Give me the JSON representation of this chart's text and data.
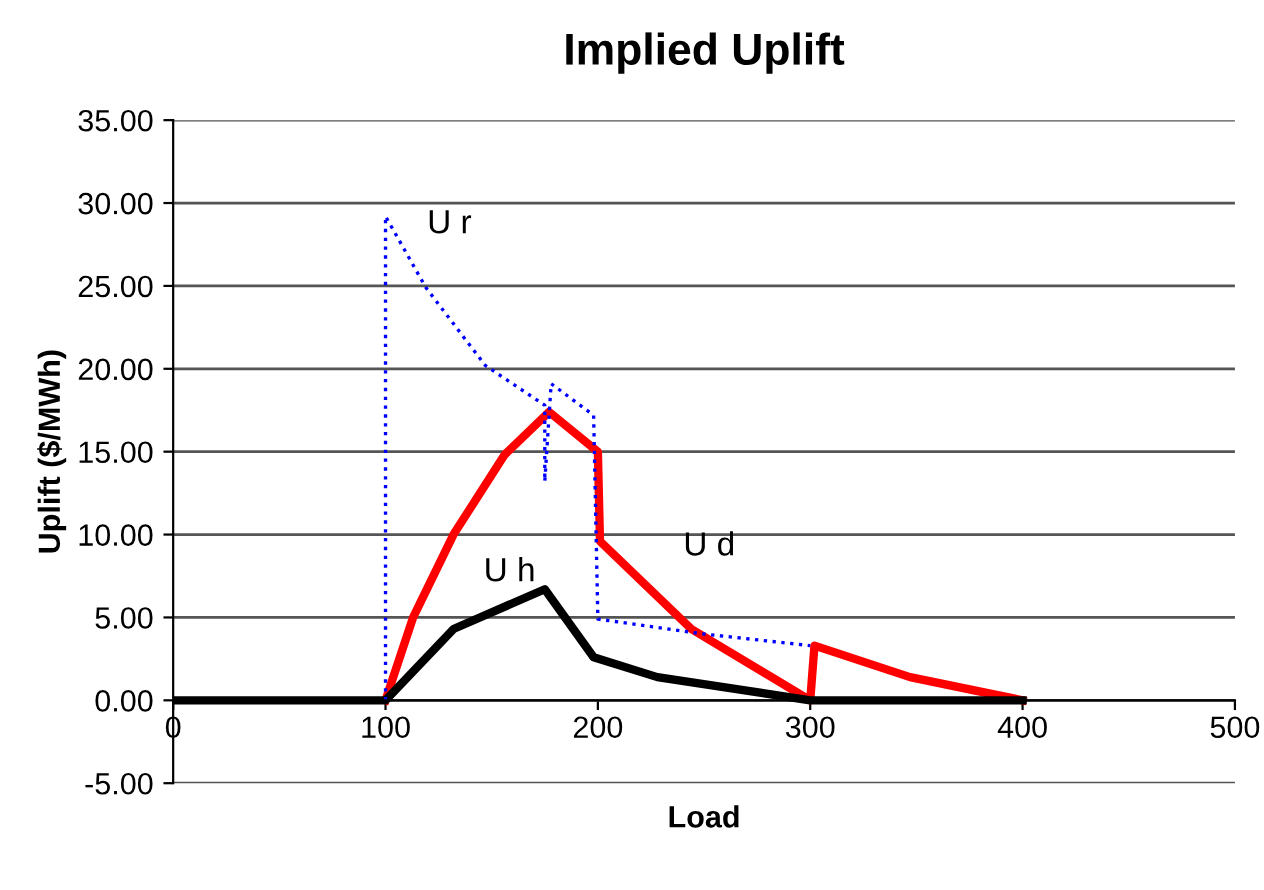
{
  "chart_data": {
    "type": "line",
    "title": "Implied Uplift",
    "xlabel": "Load",
    "ylabel": "Uplift ($/MWh)",
    "xlim": [
      0,
      500
    ],
    "xticks": [
      0,
      100,
      200,
      300,
      400,
      500
    ],
    "ylim": [
      -5,
      35
    ],
    "yticks": [
      {
        "value": -5,
        "label": "-5.00"
      },
      {
        "value": 0,
        "label": "0.00"
      },
      {
        "value": 5,
        "label": "5.00"
      },
      {
        "value": 10,
        "label": "10.00"
      },
      {
        "value": 15,
        "label": "15.00"
      },
      {
        "value": 20,
        "label": "20.00"
      },
      {
        "value": 25,
        "label": "25.00"
      },
      {
        "value": 30,
        "label": "30.00"
      },
      {
        "value": 35,
        "label": "35.00"
      }
    ],
    "grid": "y",
    "legend": false,
    "marker": "none",
    "series": [
      {
        "name": "U d",
        "color": "#ff0000",
        "line_style": "solid",
        "x": [
          100,
          113,
          132,
          156,
          177,
          200,
          201,
          244,
          300,
          302,
          347,
          400
        ],
        "values": [
          0,
          5,
          10,
          14.8,
          17.4,
          15,
          9.6,
          4.3,
          0,
          3.3,
          1.4,
          0
        ]
      },
      {
        "name": "U h",
        "color": "#000000",
        "line_style": "solid",
        "x": [
          0,
          100,
          132,
          175,
          198,
          228,
          300,
          400
        ],
        "values": [
          0,
          0,
          4.3,
          6.7,
          2.6,
          1.4,
          0,
          0
        ]
      },
      {
        "name": "U r",
        "color": "#0000ff",
        "line_style": "dotted",
        "x": [
          100,
          100,
          119,
          147,
          175,
          175,
          178,
          198,
          200,
          250,
          300
        ],
        "values": [
          0,
          29.2,
          24.9,
          20.2,
          17.8,
          13.2,
          19.1,
          17.2,
          4.9,
          4,
          3.3
        ]
      }
    ]
  }
}
